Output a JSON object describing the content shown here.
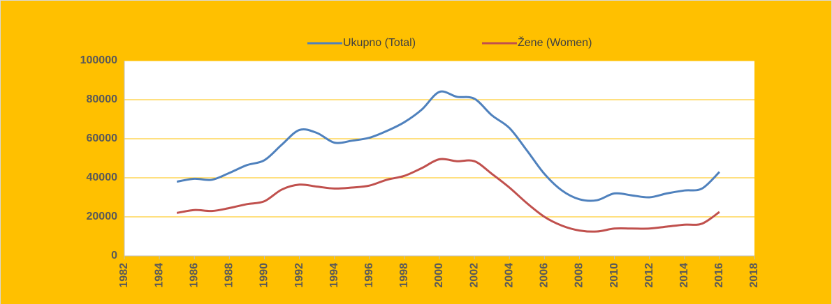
{
  "chart_data": {
    "type": "line",
    "x": [
      1985,
      1986,
      1987,
      1988,
      1989,
      1990,
      1991,
      1992,
      1993,
      1994,
      1995,
      1996,
      1997,
      1998,
      1999,
      2000,
      2001,
      2002,
      2003,
      2004,
      2005,
      2006,
      2007,
      2008,
      2009,
      2010,
      2011,
      2012,
      2013,
      2014,
      2015,
      2016
    ],
    "series": [
      {
        "name": "Ukupno (Total)",
        "color": "#4f81bd",
        "values": [
          38000,
          39500,
          39000,
          42500,
          46500,
          49000,
          57000,
          64500,
          63000,
          58000,
          59000,
          60500,
          64000,
          68500,
          75000,
          84000,
          81500,
          80500,
          72000,
          65500,
          54000,
          42000,
          33500,
          29000,
          28500,
          32000,
          31000,
          30000,
          32000,
          33500,
          34500,
          43000
        ]
      },
      {
        "name": "Žene (Women)",
        "color": "#c0504d",
        "values": [
          22000,
          23500,
          23000,
          24500,
          26500,
          28000,
          34000,
          36500,
          35500,
          34500,
          35000,
          36000,
          39000,
          41000,
          45000,
          49500,
          48500,
          48500,
          42000,
          35000,
          27000,
          20000,
          15500,
          13000,
          12500,
          14000,
          14000,
          14000,
          15000,
          16000,
          16500,
          22500
        ]
      }
    ],
    "xlim": [
      1982,
      2018
    ],
    "xticks": [
      1982,
      1984,
      1986,
      1988,
      1990,
      1992,
      1994,
      1996,
      1998,
      2000,
      2002,
      2004,
      2006,
      2008,
      2010,
      2012,
      2014,
      2016,
      2018
    ],
    "ylim": [
      0,
      100000
    ],
    "yticks": [
      0,
      20000,
      40000,
      60000,
      80000,
      100000
    ],
    "grid": true,
    "grid_color": "#ffc000",
    "background": "#ffc000",
    "legend": "top"
  }
}
